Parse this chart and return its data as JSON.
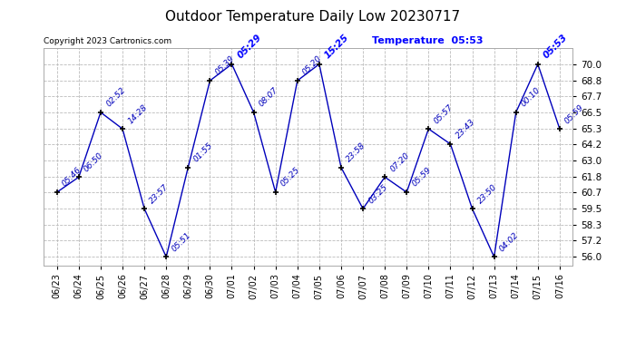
{
  "title": "Outdoor Temperature Daily Low 20230717",
  "copyright": "Copyright 2023 Cartronics.com",
  "legend_label": "Temperature",
  "legend_time": "05:53",
  "x_labels": [
    "06/23",
    "06/24",
    "06/25",
    "06/26",
    "06/27",
    "06/28",
    "06/29",
    "06/30",
    "07/01",
    "07/02",
    "07/03",
    "07/04",
    "07/05",
    "07/06",
    "07/07",
    "07/08",
    "07/09",
    "07/10",
    "07/11",
    "07/12",
    "07/13",
    "07/14",
    "07/15",
    "07/16"
  ],
  "y_values": [
    60.7,
    61.8,
    66.5,
    65.3,
    59.5,
    56.0,
    62.5,
    68.8,
    70.0,
    66.5,
    60.7,
    68.8,
    70.0,
    62.5,
    59.5,
    61.8,
    60.7,
    65.3,
    64.2,
    59.5,
    56.0,
    66.5,
    70.0,
    65.3
  ],
  "point_labels": [
    "05:46",
    "06:50",
    "02:52",
    "14:28",
    "23:57",
    "05:51",
    "01:55",
    "05:39",
    "05:29",
    "08:07",
    "05:25",
    "05:20",
    "15:25",
    "23:58",
    "03:25",
    "07:20",
    "05:59",
    "05:57",
    "23:43",
    "23:50",
    "04:02",
    "00:10",
    "05:53",
    "05:59"
  ],
  "highlight_indices": [
    8,
    12,
    22
  ],
  "ylim": [
    55.4,
    71.2
  ],
  "yticks": [
    56.0,
    57.2,
    58.3,
    59.5,
    60.7,
    61.8,
    63.0,
    64.2,
    65.3,
    66.5,
    67.7,
    68.8,
    70.0
  ],
  "line_color": "#0000bb",
  "highlight_label_color": "#0000ff",
  "normal_label_color": "#0000bb",
  "bg_color": "#ffffff",
  "grid_color": "#bbbbbb",
  "title_color": "#000000",
  "copyright_color": "#000000"
}
